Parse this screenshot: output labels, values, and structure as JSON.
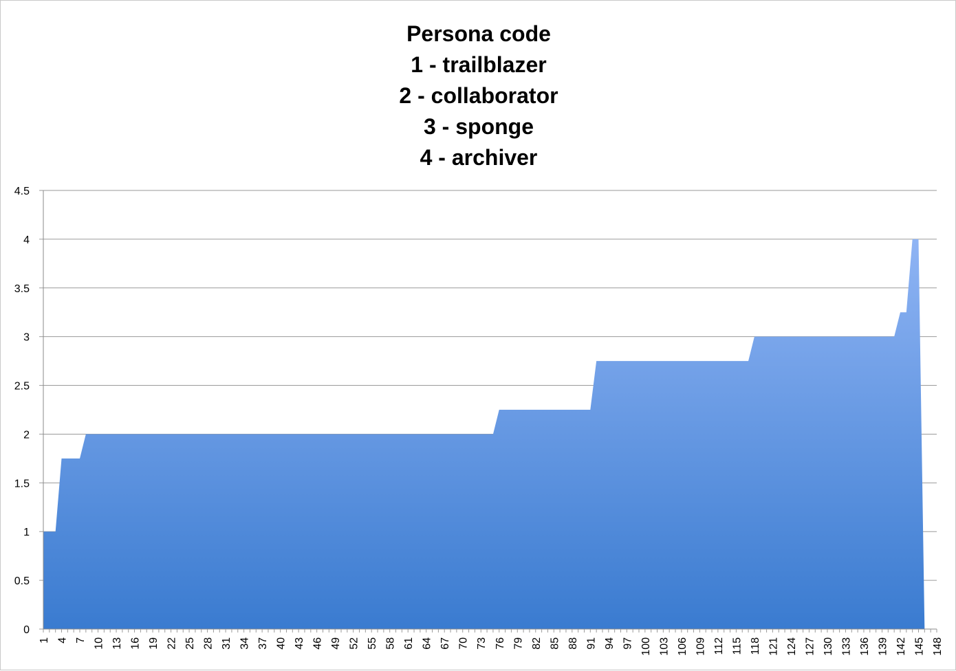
{
  "chart_data": {
    "type": "area",
    "title_lines": [
      "Persona code",
      "1 - trailblazer",
      "2 - collaborator",
      "3 - sponge",
      "4 - archiver"
    ],
    "xlabel": "",
    "ylabel": "",
    "ylim": [
      0,
      4.5
    ],
    "y_ticks": [
      "0",
      "0.5",
      "1",
      "1.5",
      "2",
      "2.5",
      "3",
      "3.5",
      "4",
      "4.5"
    ],
    "x_range": [
      1,
      148
    ],
    "x_tick_labels": [
      "1",
      "4",
      "7",
      "10",
      "13",
      "16",
      "19",
      "22",
      "25",
      "28",
      "31",
      "34",
      "37",
      "40",
      "43",
      "46",
      "49",
      "52",
      "55",
      "58",
      "61",
      "64",
      "67",
      "70",
      "73",
      "76",
      "79",
      "82",
      "85",
      "88",
      "91",
      "94",
      "97",
      "100",
      "103",
      "106",
      "109",
      "112",
      "115",
      "118",
      "121",
      "124",
      "127",
      "130",
      "133",
      "136",
      "139",
      "142",
      "145",
      "148"
    ],
    "grid": true,
    "legend": "none",
    "fill_color_top": "#8fb4f4",
    "fill_color_bottom": "#3a7bd0",
    "series": [
      {
        "x": [
          1,
          3,
          4,
          7,
          8,
          75,
          76,
          91,
          92,
          117,
          118,
          141,
          142,
          143,
          144,
          145,
          146
        ],
        "values": [
          1,
          1,
          1.75,
          1.75,
          2,
          2,
          2.25,
          2.25,
          2.75,
          2.75,
          3,
          3,
          3.25,
          3.25,
          4,
          4,
          0
        ]
      }
    ]
  }
}
